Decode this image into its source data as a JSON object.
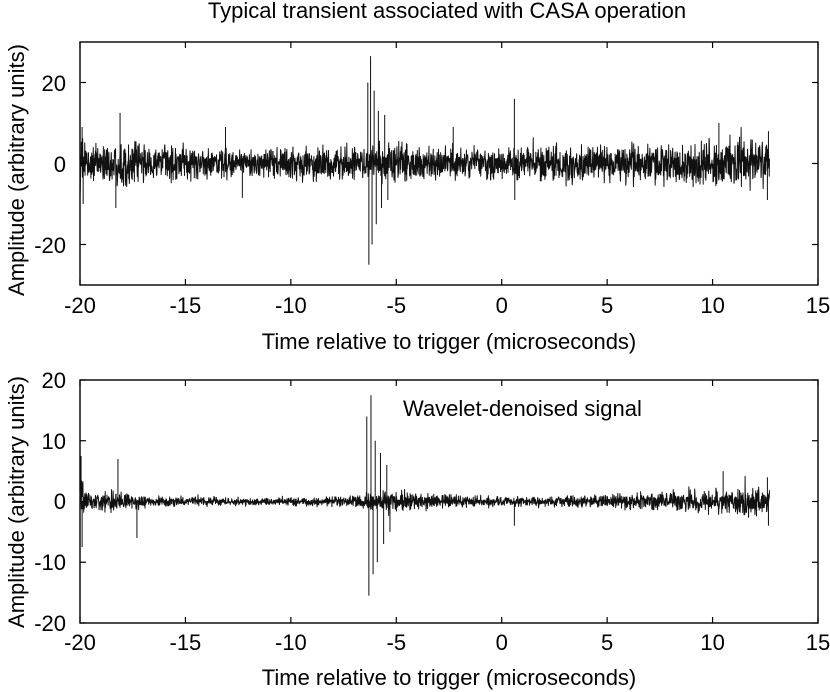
{
  "chart_data": [
    {
      "type": "line",
      "title": "Typical transient associated with CASA operation",
      "xlabel": "Time relative to trigger (microseconds)",
      "ylabel": "Amplitude (arbitrary units)",
      "xlim": [
        -20,
        15
      ],
      "ylim": [
        -30,
        30
      ],
      "xticks": [
        -20,
        -15,
        -10,
        -5,
        0,
        5,
        10,
        15
      ],
      "yticks": [
        20,
        0,
        -20
      ],
      "grid": false,
      "annotation": "",
      "series": [
        {
          "color": "#111111",
          "signal_range": [
            -20,
            12.7
          ],
          "envelope": [
            {
              "x": -20.0,
              "y": 8
            },
            {
              "x": -19.5,
              "y": 5
            },
            {
              "x": -19.0,
              "y": 5
            },
            {
              "x": -18.5,
              "y": 6
            },
            {
              "x": -18.0,
              "y": 7
            },
            {
              "x": -17.5,
              "y": 6
            },
            {
              "x": -16.0,
              "y": 5
            },
            {
              "x": -14.0,
              "y": 5
            },
            {
              "x": -12.0,
              "y": 4.5
            },
            {
              "x": -10.0,
              "y": 5
            },
            {
              "x": -8.0,
              "y": 5
            },
            {
              "x": -7.0,
              "y": 5
            },
            {
              "x": -6.5,
              "y": 5
            },
            {
              "x": -5.0,
              "y": 6
            },
            {
              "x": -3.0,
              "y": 5
            },
            {
              "x": -1.0,
              "y": 5
            },
            {
              "x": 1.0,
              "y": 5
            },
            {
              "x": 3.0,
              "y": 5
            },
            {
              "x": 5.0,
              "y": 5.5
            },
            {
              "x": 7.0,
              "y": 6
            },
            {
              "x": 9.0,
              "y": 6.5
            },
            {
              "x": 10.0,
              "y": 7
            },
            {
              "x": 11.0,
              "y": 7
            },
            {
              "x": 12.0,
              "y": 6.5
            },
            {
              "x": 12.7,
              "y": 6
            }
          ],
          "spikes": [
            {
              "x": -6.35,
              "y": 20
            },
            {
              "x": -6.3,
              "y": -25
            },
            {
              "x": -6.22,
              "y": 26.5
            },
            {
              "x": -6.15,
              "y": -20
            },
            {
              "x": -6.05,
              "y": 18
            },
            {
              "x": -5.95,
              "y": -15
            },
            {
              "x": -5.85,
              "y": 13
            },
            {
              "x": -5.7,
              "y": -11
            },
            {
              "x": -5.55,
              "y": 12
            },
            {
              "x": -5.4,
              "y": -9
            },
            {
              "x": -18.1,
              "y": 12.5
            },
            {
              "x": -18.3,
              "y": -11
            },
            {
              "x": -19.9,
              "y": 9
            },
            {
              "x": -19.85,
              "y": -10
            },
            {
              "x": 0.6,
              "y": 16
            },
            {
              "x": 0.62,
              "y": -9
            },
            {
              "x": -13.1,
              "y": 9
            },
            {
              "x": -12.3,
              "y": -8.5
            },
            {
              "x": -2.3,
              "y": 9
            },
            {
              "x": 10.3,
              "y": 10
            },
            {
              "x": 12.6,
              "y": -9
            },
            {
              "x": 12.65,
              "y": 8
            }
          ]
        }
      ]
    },
    {
      "type": "line",
      "title": "",
      "xlabel": "Time relative to trigger (microseconds)",
      "ylabel": "Amplitude (arbitrary units)",
      "xlim": [
        -20,
        15
      ],
      "ylim": [
        -20,
        20
      ],
      "xticks": [
        -20,
        -15,
        -10,
        -5,
        0,
        5,
        10,
        15
      ],
      "yticks": [
        20,
        10,
        0,
        -10,
        -20
      ],
      "grid": false,
      "annotation": "Wavelet-denoised signal",
      "series": [
        {
          "color": "#111111",
          "signal_range": [
            -20,
            12.7
          ],
          "envelope": [
            {
              "x": -20.0,
              "y": 5
            },
            {
              "x": -19.6,
              "y": 2
            },
            {
              "x": -19.0,
              "y": 1.5
            },
            {
              "x": -18.3,
              "y": 2.5
            },
            {
              "x": -17.5,
              "y": 1.5
            },
            {
              "x": -16.0,
              "y": 1
            },
            {
              "x": -14.0,
              "y": 0.8
            },
            {
              "x": -12.0,
              "y": 0.8
            },
            {
              "x": -10.0,
              "y": 0.8
            },
            {
              "x": -8.0,
              "y": 1
            },
            {
              "x": -7.0,
              "y": 1.2
            },
            {
              "x": -6.5,
              "y": 1.5
            },
            {
              "x": -5.0,
              "y": 2.5
            },
            {
              "x": -4.0,
              "y": 1.5
            },
            {
              "x": -2.0,
              "y": 1.2
            },
            {
              "x": 0.0,
              "y": 1
            },
            {
              "x": 2.0,
              "y": 1
            },
            {
              "x": 4.0,
              "y": 1.2
            },
            {
              "x": 6.0,
              "y": 1.5
            },
            {
              "x": 8.0,
              "y": 2
            },
            {
              "x": 10.0,
              "y": 2.5
            },
            {
              "x": 11.0,
              "y": 2.5
            },
            {
              "x": 12.0,
              "y": 2.5
            },
            {
              "x": 12.7,
              "y": 3
            }
          ],
          "spikes": [
            {
              "x": -19.95,
              "y": 7.5
            },
            {
              "x": -19.9,
              "y": -7.5
            },
            {
              "x": -18.2,
              "y": 7
            },
            {
              "x": -17.3,
              "y": -6
            },
            {
              "x": -6.4,
              "y": 14
            },
            {
              "x": -6.3,
              "y": -15.5
            },
            {
              "x": -6.2,
              "y": 17.5
            },
            {
              "x": -6.1,
              "y": -12
            },
            {
              "x": -6.0,
              "y": 10
            },
            {
              "x": -5.9,
              "y": -10
            },
            {
              "x": -5.75,
              "y": 8
            },
            {
              "x": -5.6,
              "y": -7
            },
            {
              "x": -5.45,
              "y": 6
            },
            {
              "x": -5.3,
              "y": -5
            },
            {
              "x": 0.6,
              "y": -4
            },
            {
              "x": 10.5,
              "y": 5
            },
            {
              "x": 12.6,
              "y": 4
            },
            {
              "x": 12.65,
              "y": -4
            }
          ]
        }
      ]
    }
  ]
}
